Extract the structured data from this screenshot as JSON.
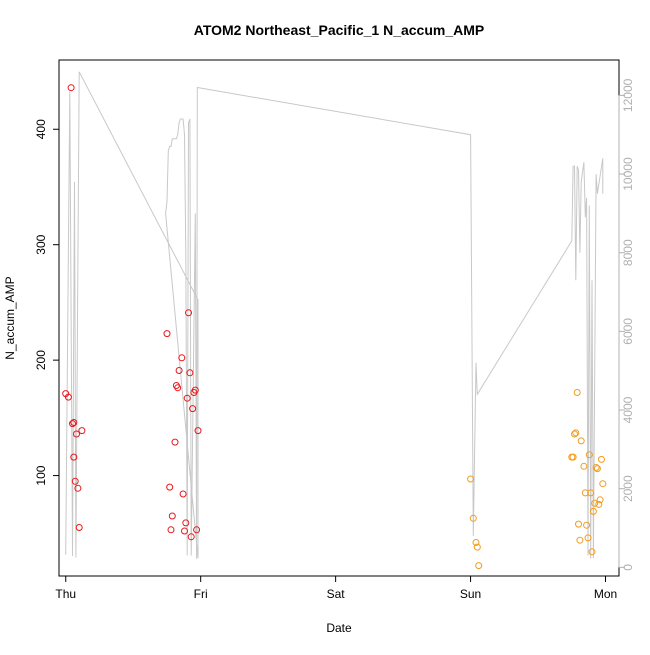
{
  "chart_data": {
    "type": "scatter",
    "title": "ATOM2 Northeast_Pacific_1 N_accum_AMP",
    "xlabel": "Date",
    "ylabel": "N_accum_AMP",
    "ylabel_right": "",
    "x_ticks": [
      "Thu",
      "Fri",
      "Sat",
      "Sun",
      "Mon"
    ],
    "y_ticks": [
      100,
      200,
      300,
      400
    ],
    "y2_ticks": [
      0,
      2000,
      4000,
      6000,
      8000,
      10000,
      12000
    ],
    "xlim": [
      -0.05,
      4.1
    ],
    "ylim": [
      13,
      460
    ],
    "y2lim": [
      -220,
      12900
    ],
    "grid": false,
    "colors": {
      "series_a": "#e8191c",
      "series_b": "#f39c1e",
      "line": "#c8c8c8"
    },
    "series": [
      {
        "points": [
          [
            0.0,
            171
          ],
          [
            0.02,
            168
          ],
          [
            0.04,
            436
          ],
          [
            0.05,
            145
          ],
          [
            0.06,
            146
          ],
          [
            0.06,
            116
          ],
          [
            0.07,
            95
          ],
          [
            0.08,
            136
          ],
          [
            0.09,
            89
          ],
          [
            0.1,
            55
          ],
          [
            0.12,
            139
          ],
          [
            0.75,
            223
          ],
          [
            0.77,
            90
          ],
          [
            0.78,
            53
          ],
          [
            0.79,
            65
          ],
          [
            0.81,
            129
          ],
          [
            0.82,
            178
          ],
          [
            0.83,
            176
          ],
          [
            0.84,
            191
          ],
          [
            0.86,
            202
          ],
          [
            0.87,
            84
          ],
          [
            0.88,
            52
          ],
          [
            0.89,
            59
          ],
          [
            0.9,
            167
          ],
          [
            0.91,
            241
          ],
          [
            0.92,
            189
          ],
          [
            0.93,
            47
          ],
          [
            0.94,
            158
          ],
          [
            0.95,
            172
          ],
          [
            0.96,
            174
          ],
          [
            0.97,
            53
          ],
          [
            0.98,
            139
          ]
        ]
      },
      {
        "points": [
          [
            3.0,
            97
          ],
          [
            3.02,
            63
          ],
          [
            3.04,
            42
          ],
          [
            3.05,
            38
          ],
          [
            3.06,
            22
          ],
          [
            3.75,
            116
          ],
          [
            3.76,
            116
          ],
          [
            3.77,
            136
          ],
          [
            3.78,
            137
          ],
          [
            3.79,
            172
          ],
          [
            3.8,
            58
          ],
          [
            3.81,
            44
          ],
          [
            3.82,
            130
          ],
          [
            3.84,
            108
          ],
          [
            3.85,
            85
          ],
          [
            3.86,
            57
          ],
          [
            3.87,
            46
          ],
          [
            3.88,
            118
          ],
          [
            3.89,
            85
          ],
          [
            3.9,
            34
          ],
          [
            3.91,
            69
          ],
          [
            3.92,
            76
          ],
          [
            3.93,
            107
          ],
          [
            3.94,
            106
          ],
          [
            3.95,
            75
          ],
          [
            3.96,
            79
          ],
          [
            3.97,
            114
          ],
          [
            3.98,
            93
          ]
        ]
      }
    ],
    "line_series": {
      "axis": "right",
      "points": [
        [
          0.0,
          320
        ],
        [
          0.03,
          12100
        ],
        [
          0.05,
          290
        ],
        [
          0.065,
          9800
        ],
        [
          0.075,
          250
        ],
        [
          0.1,
          12600
        ],
        [
          0.98,
          6800
        ],
        [
          0.98,
          230
        ],
        [
          0.74,
          9000
        ],
        [
          0.75,
          9300
        ],
        [
          0.76,
          10600
        ],
        [
          0.77,
          10700
        ],
        [
          0.78,
          10700
        ],
        [
          0.79,
          10900
        ],
        [
          0.82,
          10900
        ],
        [
          0.83,
          11000
        ],
        [
          0.84,
          11300
        ],
        [
          0.85,
          11400
        ],
        [
          0.87,
          11400
        ],
        [
          0.88,
          11000
        ],
        [
          0.89,
          8000
        ],
        [
          0.9,
          300
        ],
        [
          0.91,
          11300
        ],
        [
          0.92,
          11400
        ],
        [
          0.93,
          300
        ],
        [
          0.96,
          9000
        ],
        [
          0.97,
          220
        ],
        [
          0.975,
          12200
        ],
        [
          3.0,
          11000
        ],
        [
          3.02,
          800
        ],
        [
          3.04,
          5200
        ],
        [
          3.05,
          4400
        ],
        [
          3.75,
          8300
        ],
        [
          3.76,
          10200
        ],
        [
          3.77,
          10200
        ],
        [
          3.78,
          7300
        ],
        [
          3.79,
          10200
        ],
        [
          3.8,
          10100
        ],
        [
          3.81,
          8000
        ],
        [
          3.82,
          9800
        ],
        [
          3.84,
          10300
        ],
        [
          3.85,
          8900
        ],
        [
          3.86,
          9400
        ],
        [
          3.87,
          300
        ],
        [
          3.88,
          9200
        ],
        [
          3.89,
          220
        ],
        [
          3.9,
          7300
        ],
        [
          3.91,
          230
        ],
        [
          3.93,
          10000
        ],
        [
          3.94,
          9500
        ],
        [
          3.98,
          10400
        ],
        [
          3.98,
          9500
        ]
      ]
    }
  }
}
